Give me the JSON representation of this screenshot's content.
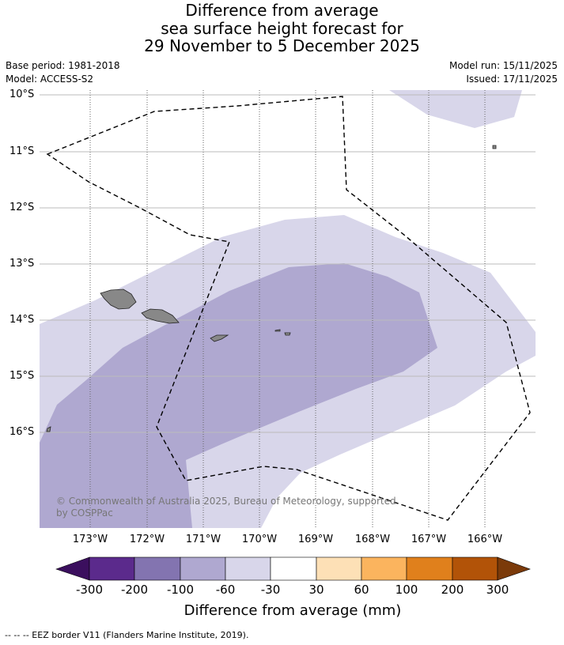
{
  "title": {
    "line1": "Difference from average",
    "line2": "sea surface height forecast for",
    "line3": "29 November to 5 December 2025"
  },
  "meta": {
    "base_period": "Base period: 1981-2018",
    "model": "Model: ACCESS-S2",
    "model_run": "Model run: 15/11/2025",
    "issued": "Issued: 17/11/2025"
  },
  "map": {
    "lat_labels": [
      "10°S",
      "11°S",
      "12°S",
      "13°S",
      "14°S",
      "15°S",
      "16°S"
    ],
    "lon_labels": [
      "173°W",
      "172°W",
      "171°W",
      "170°W",
      "169°W",
      "168°W",
      "167°W",
      "166°W"
    ],
    "copyright_line1": "© Commonwealth of Australia 2025, Bureau of Meteorology, supported",
    "copyright_line2": "by COSPPac"
  },
  "colorbar": {
    "ticks": [
      "-300",
      "-200",
      "-100",
      "-60",
      "-30",
      "30",
      "60",
      "100",
      "200",
      "300"
    ],
    "colors": [
      "#3b0f5e",
      "#5b2a8c",
      "#8374b0",
      "#afa8d0",
      "#d8d6ea",
      "#ffffff",
      "#fde0b6",
      "#fbb45e",
      "#e0801c",
      "#b25308",
      "#7b3a0a"
    ],
    "title": "Difference from average (mm)"
  },
  "footer": "--  --  -- EEZ border V11 (Flanders Marine Institute, 2019).",
  "colors": {
    "light_band": "#d8d6ea",
    "mid_band": "#afa8d0",
    "land": "#888888",
    "grid": "#bbbbbb"
  }
}
